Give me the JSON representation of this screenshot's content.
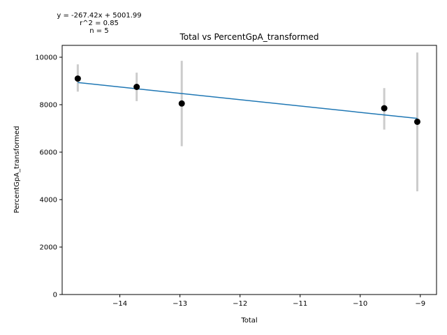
{
  "chart_data": {
    "type": "scatter",
    "title": "Total vs PercentGpA_transformed",
    "xlabel": "Total",
    "ylabel": "PercentGpA_transformed",
    "xlim": [
      -14.96,
      -8.73
    ],
    "ylim": [
      0,
      10500
    ],
    "xticks": [
      -14,
      -13,
      -12,
      -11,
      -10,
      -9
    ],
    "xtick_labels": [
      "−14",
      "−13",
      "−12",
      "−11",
      "−10",
      "−9"
    ],
    "yticks": [
      0,
      2000,
      4000,
      6000,
      8000,
      10000
    ],
    "ytick_labels": [
      "0",
      "2000",
      "4000",
      "6000",
      "8000",
      "10000"
    ],
    "points": [
      {
        "x": -14.7,
        "y": 9100,
        "err_low": 8550,
        "err_high": 9700
      },
      {
        "x": -13.72,
        "y": 8750,
        "err_low": 8150,
        "err_high": 9350
      },
      {
        "x": -12.97,
        "y": 8050,
        "err_low": 6250,
        "err_high": 9850
      },
      {
        "x": -9.6,
        "y": 7850,
        "err_low": 6950,
        "err_high": 8700
      },
      {
        "x": -9.05,
        "y": 7280,
        "err_low": 4350,
        "err_high": 10200
      }
    ],
    "fit_line": {
      "slope": -267.42,
      "intercept": 5001.99,
      "x_range": [
        -14.7,
        -9.05
      ]
    },
    "annotations": [
      "y = -267.42x + 5001.99",
      "r^2 = 0.85",
      "n = 5"
    ],
    "colors": {
      "points": "#000000",
      "fit_line": "#1f77b4",
      "error_bars": "#cccccc"
    },
    "grid": false,
    "legend": "none"
  }
}
